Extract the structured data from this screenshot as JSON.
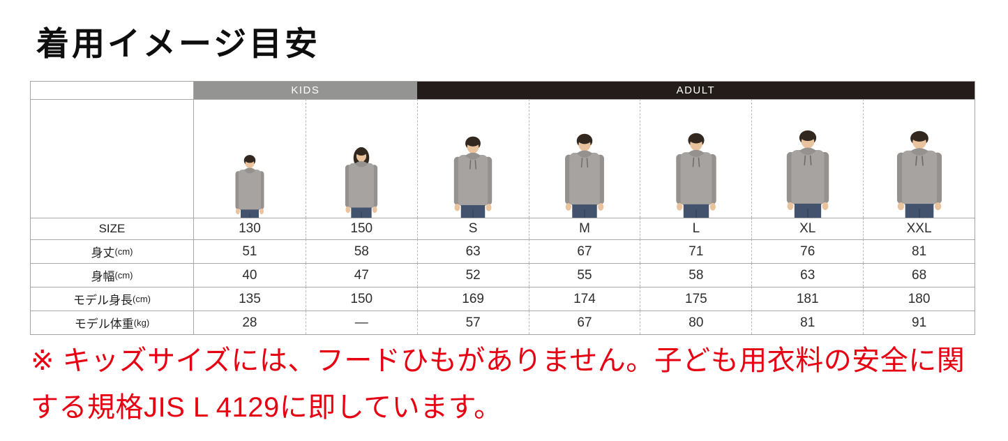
{
  "title": "着用イメージ目安",
  "table": {
    "groups": [
      {
        "label": "KIDS",
        "span": 2,
        "bg": "#949492"
      },
      {
        "label": "ADULT",
        "span": 5,
        "bg": "#231c18"
      }
    ],
    "size_row_label": "SIZE",
    "sizes": [
      "130",
      "150",
      "S",
      "M",
      "L",
      "XL",
      "XXL"
    ],
    "rows": [
      {
        "label": "身丈",
        "unit": "(cm)",
        "values": [
          "51",
          "58",
          "63",
          "67",
          "71",
          "76",
          "81"
        ]
      },
      {
        "label": "身幅",
        "unit": "(cm)",
        "values": [
          "40",
          "47",
          "52",
          "55",
          "58",
          "63",
          "68"
        ]
      },
      {
        "label": "モデル身長",
        "unit": "(cm)",
        "values": [
          "135",
          "150",
          "169",
          "174",
          "175",
          "181",
          "180"
        ]
      },
      {
        "label": "モデル体重",
        "unit": "(kg)",
        "values": [
          "28",
          "—",
          "57",
          "67",
          "80",
          "81",
          "91"
        ]
      }
    ],
    "models": [
      {
        "size": "130",
        "height_cm": 135,
        "type": "boy",
        "drawstrings": false,
        "build": 0.95
      },
      {
        "size": "150",
        "height_cm": 150,
        "type": "girl",
        "drawstrings": false,
        "build": 0.97
      },
      {
        "size": "S",
        "height_cm": 169,
        "type": "man",
        "drawstrings": true,
        "build": 1.0
      },
      {
        "size": "M",
        "height_cm": 174,
        "type": "man",
        "drawstrings": true,
        "build": 1.0
      },
      {
        "size": "L",
        "height_cm": 175,
        "type": "man",
        "drawstrings": true,
        "build": 1.02
      },
      {
        "size": "XL",
        "height_cm": 181,
        "type": "man",
        "drawstrings": true,
        "build": 1.04
      },
      {
        "size": "XXL",
        "height_cm": 180,
        "type": "man",
        "drawstrings": true,
        "build": 1.12
      }
    ]
  },
  "footnote": "※ キッズサイズには、フードひもがありません。子ども用衣料の安全に関する規格JIS L 4129に即しています。",
  "colors": {
    "kids_header_bg": "#949492",
    "adult_header_bg": "#231c18",
    "header_text": "#ffffff",
    "footnote_red": "#e60012",
    "hoodie_gray": "#a6a3a0",
    "jeans_blue": "#44536d",
    "border_gray": "#aaa8a6"
  }
}
